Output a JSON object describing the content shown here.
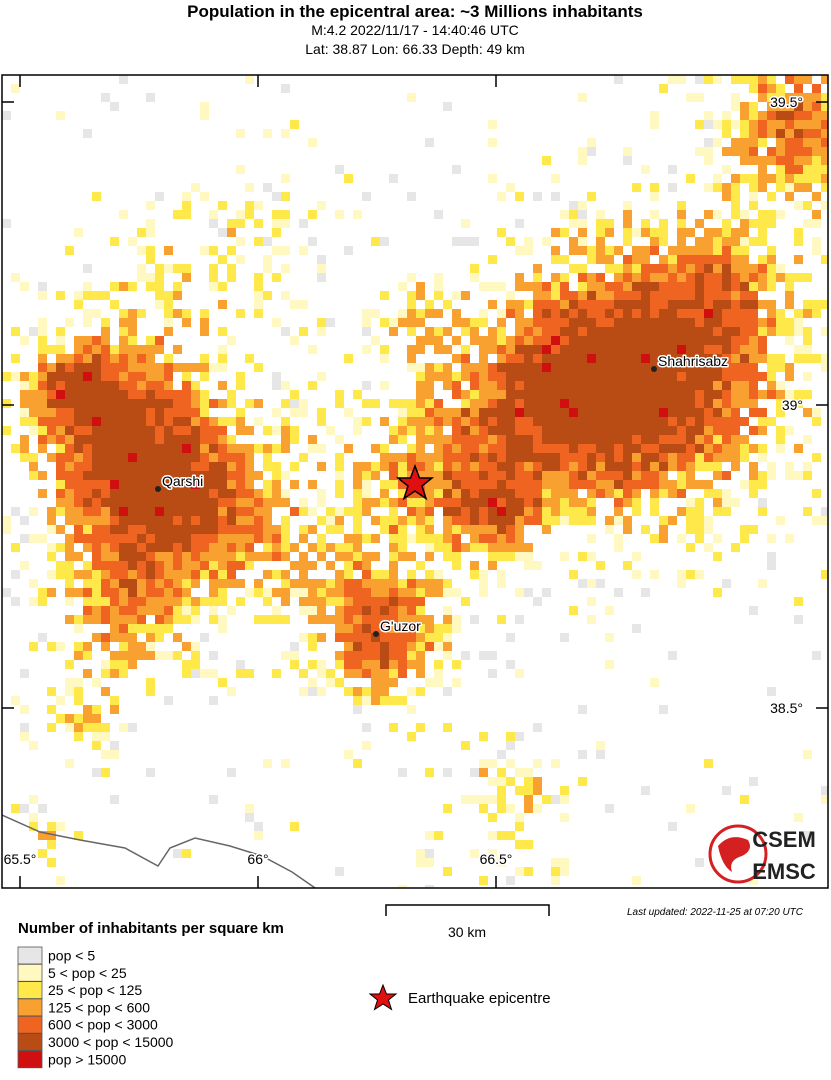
{
  "title": "Population in the epicentral area: ~3 Millions inhabitants",
  "subtitle": [
    "M:4.2 2022/11/17 - 14:40:46 UTC",
    "Lat: 38.87 Lon: 66.33 Depth: 49 km"
  ],
  "map": {
    "lat_ticks": [
      {
        "value": 39.5,
        "label": "39.5°"
      },
      {
        "value": 39,
        "label": "39°"
      },
      {
        "value": 38.5,
        "label": "38.5°"
      }
    ],
    "lon_ticks": [
      {
        "value": 65.5,
        "label": "65.5°"
      },
      {
        "value": 66,
        "label": "66°"
      },
      {
        "value": 66.5,
        "label": "66.5°"
      }
    ],
    "cities": [
      "Qarshi",
      "Shahrisabz",
      "G'uzor"
    ]
  },
  "scale": "30 km",
  "updated": "Last updated: 2022-11-25 at 07:20 UTC",
  "legend": {
    "title": "Number of inhabitants per square km",
    "items": [
      {
        "label": "pop < 5",
        "color": "#e6e6e6"
      },
      {
        "label": "5 < pop < 25",
        "color": "#fff8c0"
      },
      {
        "label": "25 < pop < 125",
        "color": "#ffe94a"
      },
      {
        "label": "125 < pop < 600",
        "color": "#f8a030"
      },
      {
        "label": "600 < pop < 3000",
        "color": "#f06422"
      },
      {
        "label": "3000 < pop < 15000",
        "color": "#b84c14"
      },
      {
        "label": "pop > 15000",
        "color": "#d01010"
      }
    ],
    "epicentre": "Earthquake epicentre"
  },
  "logo": [
    "CSEM",
    "EMSC"
  ]
}
